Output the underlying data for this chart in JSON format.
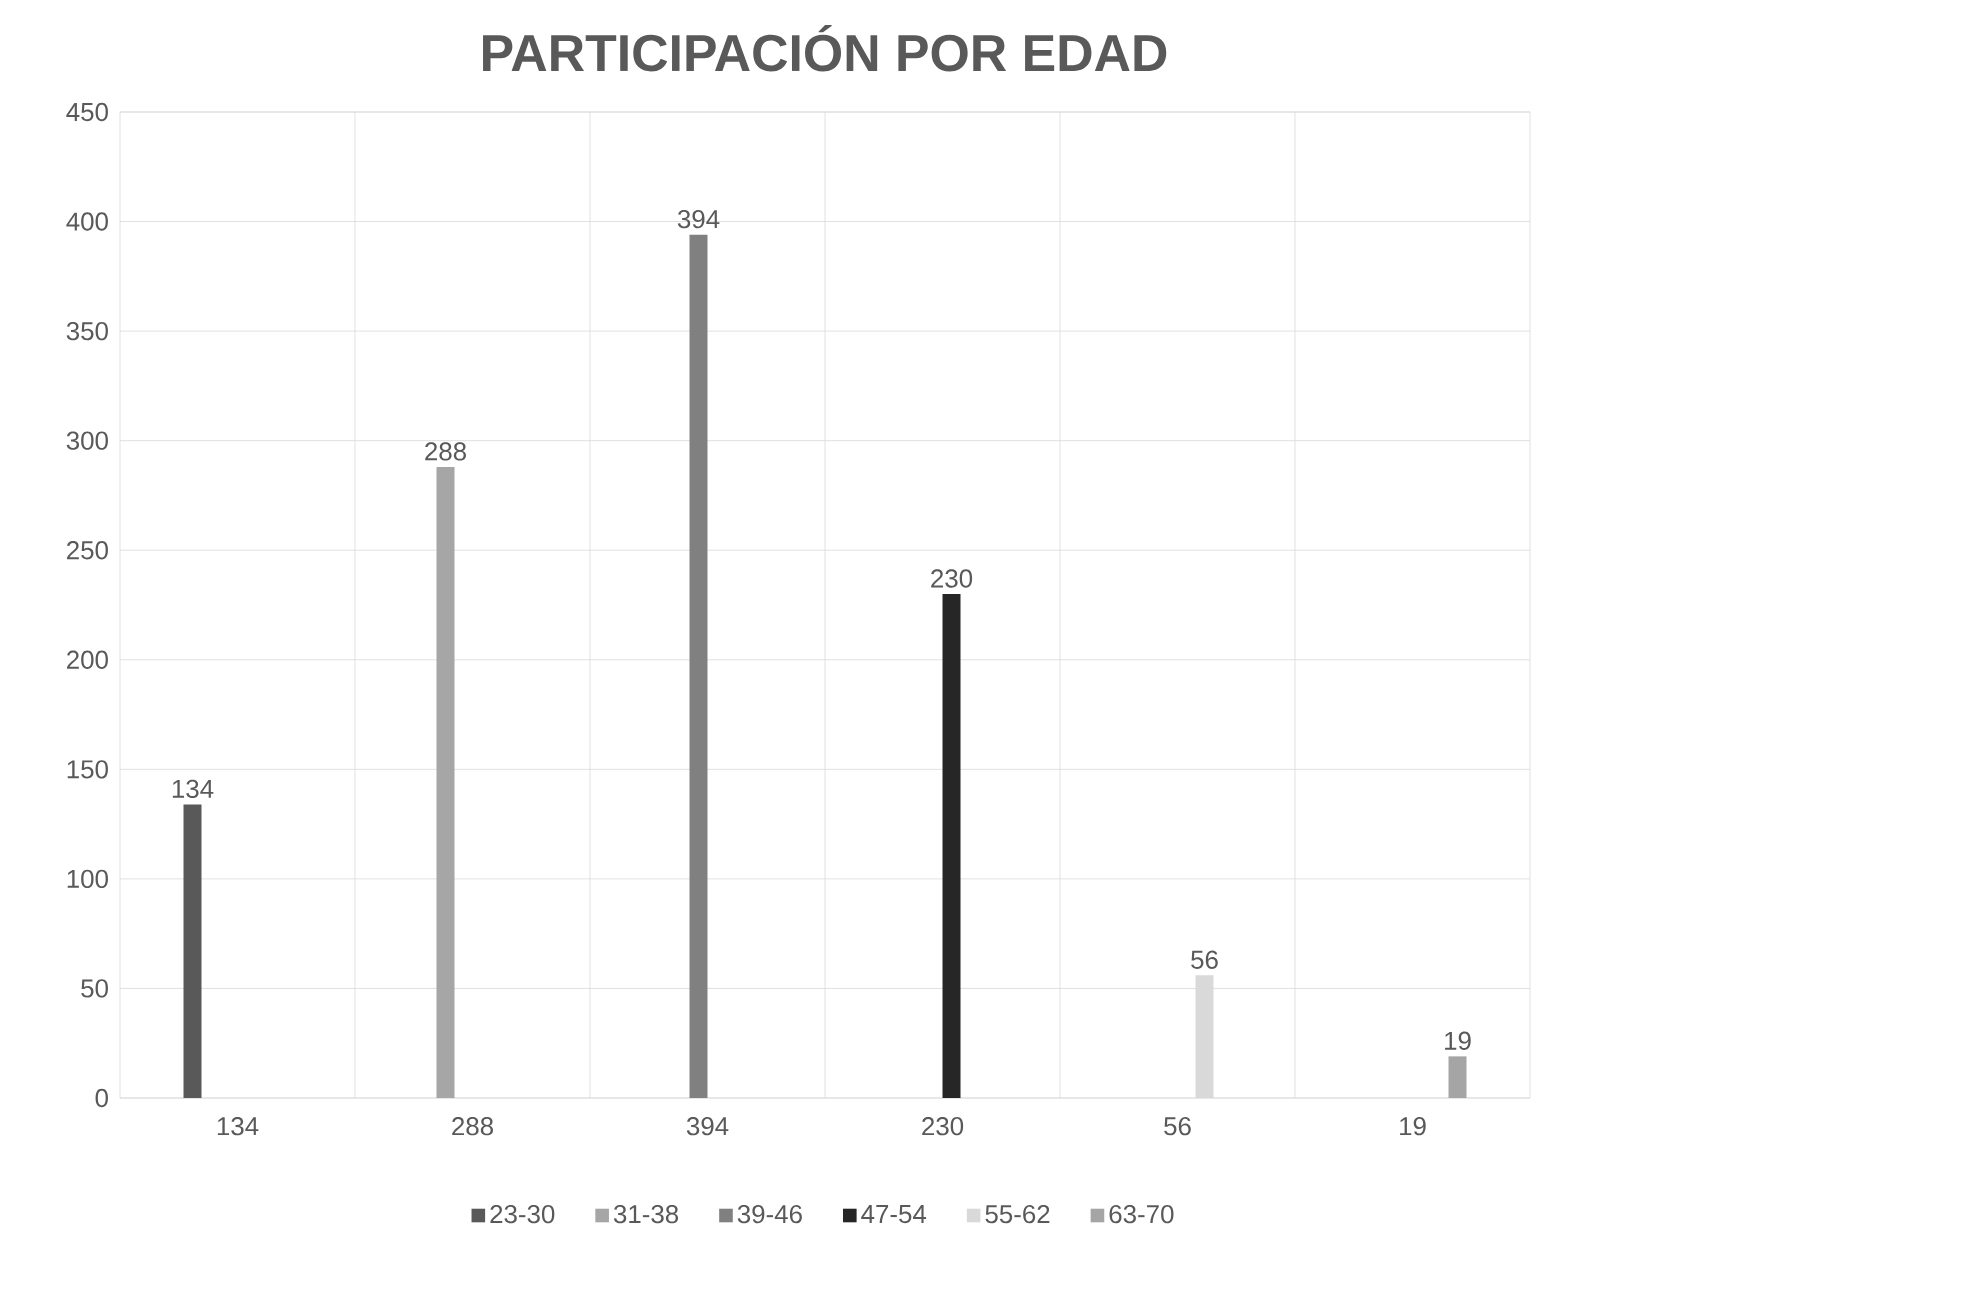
{
  "chart_data": {
    "type": "bar",
    "title": "PARTICIPACIÓN POR EDAD",
    "categories": [
      "134",
      "288",
      "394",
      "230",
      "56",
      "19"
    ],
    "series": [
      {
        "name": "23-30",
        "color": "#595959",
        "values": [
          134,
          null,
          null,
          null,
          null,
          null
        ]
      },
      {
        "name": "31-38",
        "color": "#a6a6a6",
        "values": [
          null,
          288,
          null,
          null,
          null,
          null
        ]
      },
      {
        "name": "39-46",
        "color": "#808080",
        "values": [
          null,
          null,
          394,
          null,
          null,
          null
        ]
      },
      {
        "name": "47-54",
        "color": "#262626",
        "values": [
          null,
          null,
          null,
          230,
          null,
          null
        ]
      },
      {
        "name": "55-62",
        "color": "#d9d9d9",
        "values": [
          null,
          null,
          null,
          null,
          56,
          null
        ]
      },
      {
        "name": "63-70",
        "color": "#a5a5a5",
        "values": [
          null,
          null,
          null,
          null,
          null,
          19
        ]
      }
    ],
    "ylim": [
      0,
      450
    ],
    "yticks": [
      0,
      50,
      100,
      150,
      200,
      250,
      300,
      350,
      400,
      450
    ],
    "grid": true,
    "legend": "bottom",
    "data_labels": true
  }
}
